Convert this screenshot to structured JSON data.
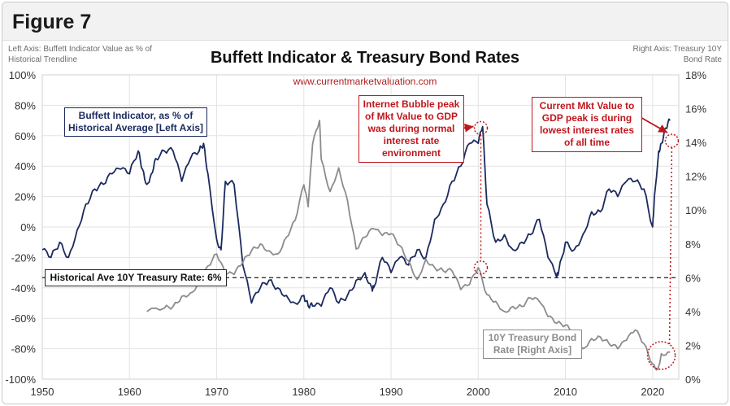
{
  "figure_label": "Figure 7",
  "left_axis_note": "Left Axis: Buffett Indicator Value as % of Historical Trendline",
  "right_axis_note": "Right Axis: Treasury 10Y Bond Rate",
  "website": "www.currentmarketvaluation.com",
  "annotations": {
    "buffett_label": "Buffett Indicator, as % of Historical Average [Left Axis]",
    "treasury_label": "10Y Treasury Bond Rate [Right Axis]",
    "historical_avg": "Historical Ave 10Y Treasury Rate: 6%",
    "internet_bubble": "Internet Bubble peak of Mkt Value to GDP was during normal interest rate environment",
    "current": "Current Mkt Value to GDP peak is during lowest interest rates of all time"
  },
  "colors": {
    "buffett": "#1b2a5e",
    "treasury": "#8c8c8c",
    "accent": "#c0161c"
  },
  "chart_data": {
    "type": "line",
    "title": "Buffett Indicator & Treasury Bond Rates",
    "xlabel": "",
    "ylabel": "",
    "xlim": [
      1950,
      2023
    ],
    "ylim_left": [
      -100,
      100
    ],
    "ylim_right": [
      0,
      18
    ],
    "x_ticks": [
      "1950",
      "1960",
      "1970",
      "1980",
      "1990",
      "2000",
      "2010",
      "2020"
    ],
    "left_ticks": [
      "100%",
      "80%",
      "60%",
      "40%",
      "20%",
      "0%",
      "-20%",
      "-40%",
      "-60%",
      "-80%",
      "-100%"
    ],
    "right_ticks": [
      "18%",
      "16%",
      "14%",
      "12%",
      "10%",
      "8%",
      "6%",
      "4%",
      "2%",
      "0%"
    ],
    "grid": true,
    "reference_line": {
      "value_right_axis": 6
    },
    "series": [
      {
        "name": "Buffett Indicator, as % of Historical Average [Left Axis]",
        "axis": "left",
        "x": [
          1950,
          1951,
          1952,
          1953,
          1954,
          1955,
          1956,
          1957,
          1958,
          1959,
          1960,
          1961,
          1961.5,
          1962,
          1962.5,
          1963,
          1964,
          1965,
          1966,
          1967,
          1968,
          1968.5,
          1969,
          1970,
          1970.5,
          1971,
          1972,
          1973,
          1974,
          1975,
          1976,
          1977,
          1978,
          1979,
          1980,
          1980.5,
          1981,
          1982,
          1983,
          1984,
          1985,
          1986,
          1987,
          1987.8,
          1988,
          1989,
          1990,
          1991,
          1992,
          1993,
          1994,
          1995,
          1996,
          1997,
          1998,
          1999,
          2000,
          2000.5,
          2001,
          2002,
          2003,
          2004,
          2005,
          2006,
          2007,
          2008,
          2009,
          2009.2,
          2010,
          2011,
          2012,
          2013,
          2014,
          2015,
          2016,
          2017,
          2018,
          2019,
          2020,
          2020.2,
          2020.7,
          2021,
          2021.5,
          2022
        ],
        "values": [
          -15,
          -20,
          -10,
          -20,
          -2,
          15,
          25,
          28,
          35,
          38,
          35,
          50,
          38,
          28,
          35,
          45,
          50,
          50,
          30,
          45,
          50,
          55,
          35,
          -8,
          -15,
          30,
          28,
          -25,
          -50,
          -40,
          -35,
          -40,
          -45,
          -50,
          -45,
          -52,
          -52,
          -52,
          -40,
          -50,
          -45,
          -35,
          -30,
          -40,
          -40,
          -20,
          -30,
          -20,
          -25,
          -15,
          -20,
          5,
          15,
          30,
          40,
          55,
          55,
          66,
          15,
          -10,
          -5,
          -15,
          -10,
          -5,
          5,
          -20,
          -33,
          -30,
          -10,
          -15,
          -5,
          10,
          10,
          25,
          20,
          30,
          30,
          25,
          0,
          20,
          50,
          55,
          65,
          70
        ]
      },
      {
        "name": "10Y Treasury Bond Rate [Right Axis]",
        "axis": "right",
        "x": [
          1962,
          1964,
          1965,
          1966,
          1967,
          1968,
          1969,
          1970,
          1971,
          1972,
          1973,
          1974,
          1975,
          1976,
          1977,
          1978,
          1979,
          1980,
          1980.5,
          1981,
          1981.8,
          1982,
          1983,
          1984,
          1985,
          1986,
          1987,
          1988,
          1989,
          1990,
          1991,
          1992,
          1993,
          1994,
          1995,
          1996,
          1997,
          1998,
          1999,
          2000,
          2001,
          2002,
          2003,
          2004,
          2005,
          2006,
          2007,
          2008,
          2009,
          2010,
          2011,
          2012,
          2013,
          2014,
          2015,
          2016,
          2017,
          2018,
          2019,
          2020,
          2020.6,
          2021,
          2022
        ],
        "values": [
          4,
          4.2,
          4.3,
          4.9,
          5.1,
          5.7,
          6.7,
          7.4,
          6.2,
          6.2,
          6.9,
          7.6,
          8,
          7.6,
          7.4,
          8.4,
          9.4,
          11.5,
          10.2,
          13.9,
          15.3,
          13,
          11.1,
          12.5,
          10.6,
          7.7,
          8.4,
          8.9,
          8.5,
          8.6,
          7.9,
          7,
          5.9,
          7.1,
          6.6,
          6.4,
          6.4,
          5.3,
          5.6,
          6.6,
          5,
          4.6,
          4,
          4.3,
          4.3,
          4.8,
          4.6,
          3.7,
          3.3,
          3.2,
          2.8,
          1.8,
          2.4,
          2.5,
          2.1,
          1.8,
          2.3,
          2.9,
          2.1,
          0.9,
          0.6,
          1.5,
          1.6
        ]
      }
    ]
  }
}
